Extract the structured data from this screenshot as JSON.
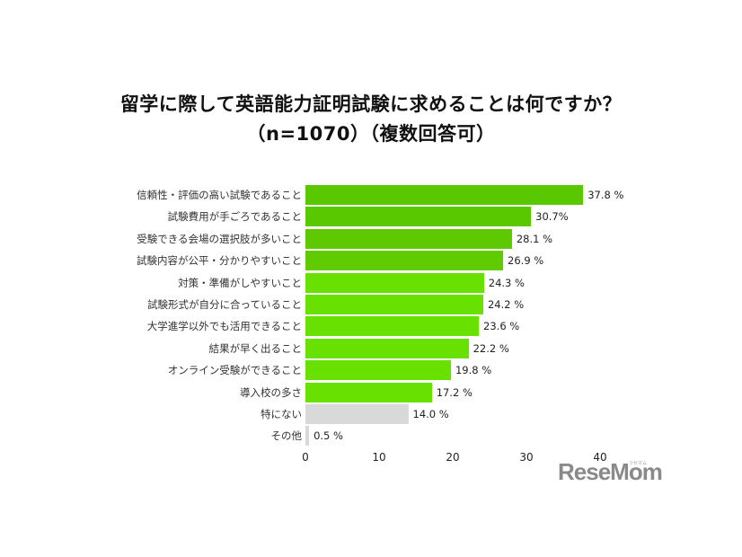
{
  "title": {
    "line1": "留学に際して英語能力証明試験に求めることは何ですか？",
    "line2": "（n=1070）（複数回答可）"
  },
  "chart_data": {
    "type": "bar",
    "orientation": "horizontal",
    "title": "留学に際して英語能力証明試験に求めることは何ですか？（n=1070）（複数回答可）",
    "categories": [
      "信頼性・評価の高い試験であること",
      "試験費用が手ごろであること",
      "受験できる会場の選択肢が多いこと",
      "試験内容が公平・分かりやすいこと",
      "対策・準備がしやすいこと",
      "試験形式が自分に合っていること",
      "大学進学以外でも活用できること",
      "結果が早く出ること",
      "オンライン受験ができること",
      "導入校の多さ",
      "特にない",
      "その他"
    ],
    "values": [
      37.8,
      30.7,
      28.1,
      26.9,
      24.3,
      24.2,
      23.6,
      22.2,
      19.8,
      17.2,
      14.0,
      0.5
    ],
    "value_labels": [
      "37.8 %",
      "30.7%",
      "28.1 %",
      "26.9 %",
      "24.3 %",
      "24.2 %",
      "23.6 %",
      "22.2 %",
      "19.8 %",
      "17.2 %",
      "14.0 %",
      "0.5 %"
    ],
    "colors": [
      "#5ac800",
      "#5ac800",
      "#5ec900",
      "#5fcb00",
      "#68e000",
      "#68e000",
      "#68e000",
      "#68e000",
      "#68e000",
      "#68e000",
      "#d9d9d9",
      "#d9d9d9"
    ],
    "xlabel": "",
    "ylabel": "",
    "xlim": [
      0,
      40
    ],
    "xticks": [
      "0",
      "10",
      "20",
      "30",
      "40"
    ],
    "unit": "%",
    "grid": false,
    "legend": null
  },
  "watermark": {
    "text": "ReseMom",
    "sub": "リセマム"
  }
}
